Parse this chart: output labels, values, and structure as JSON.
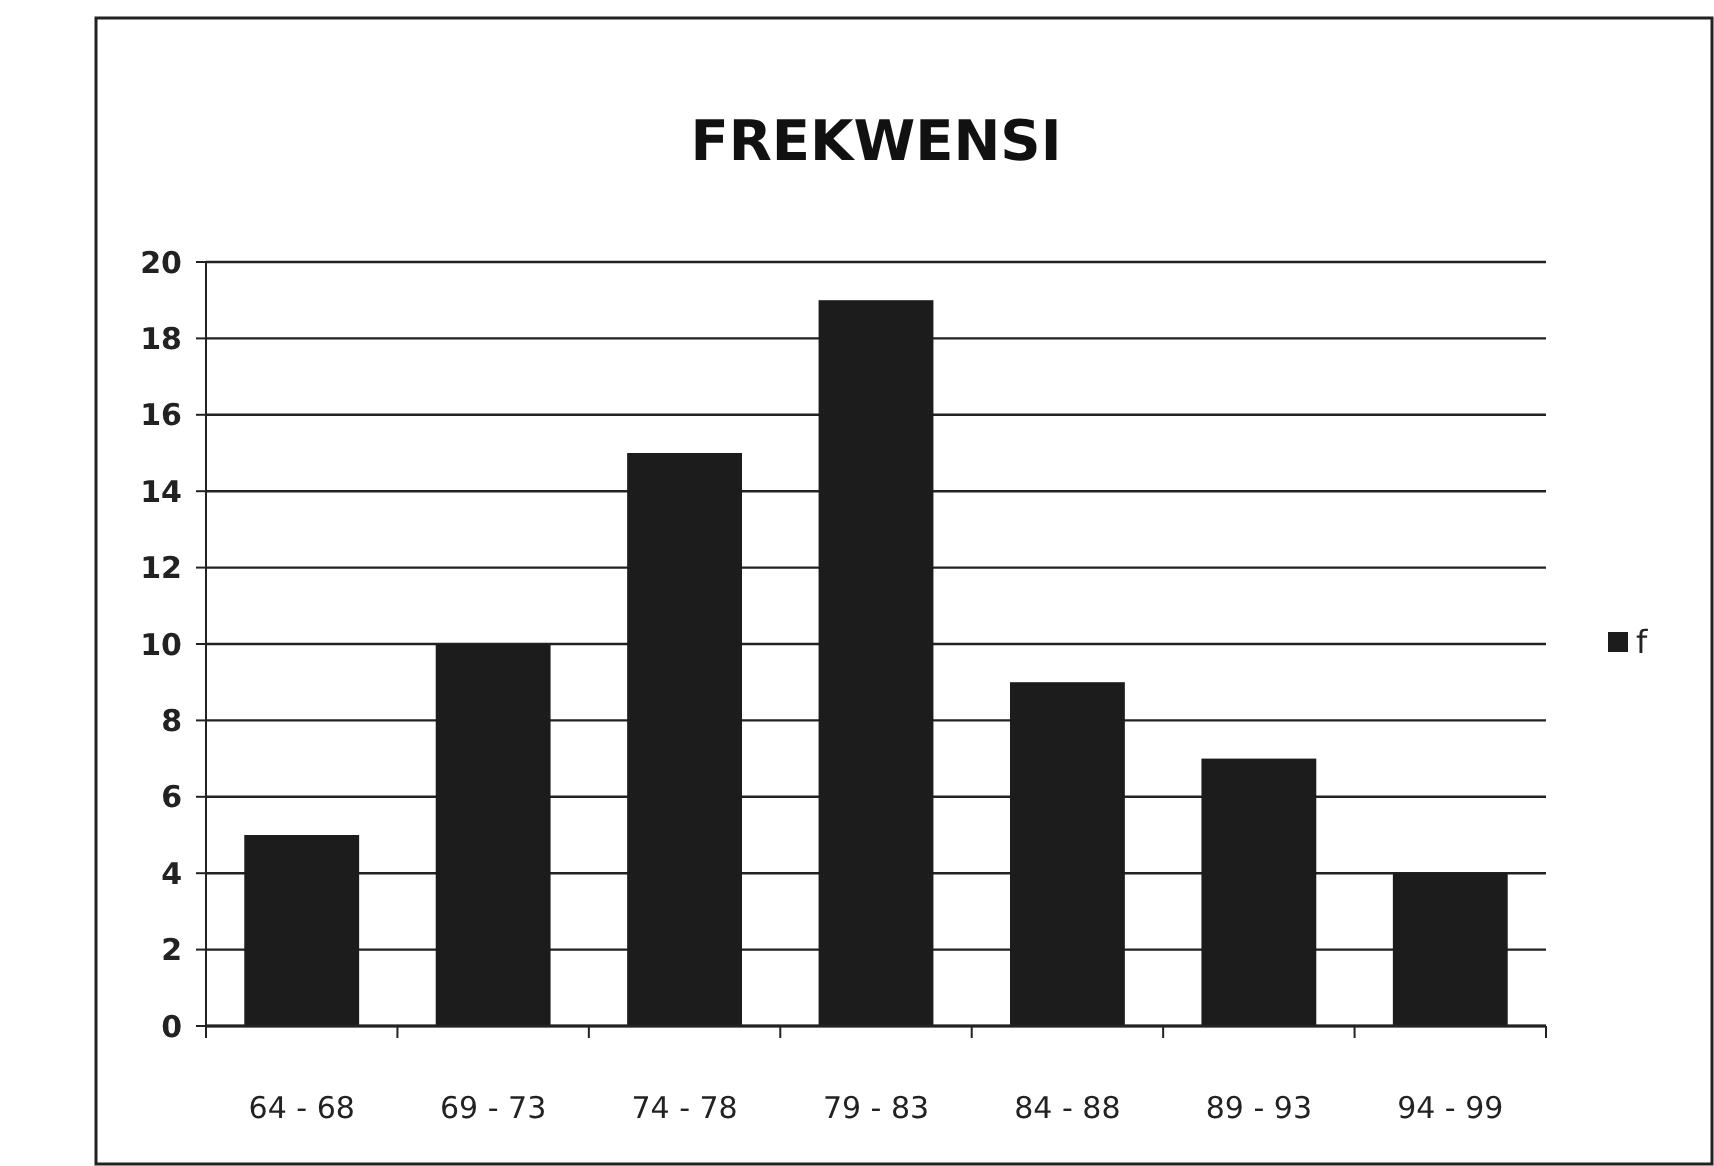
{
  "chart_data": {
    "type": "bar",
    "title": "FREKWENSI",
    "categories": [
      "64 - 68",
      "69 - 73",
      "74 - 78",
      "79 - 83",
      "84 - 88",
      "89 - 93",
      "94 - 99"
    ],
    "series": [
      {
        "name": "f",
        "color": "#1c1c1c",
        "values": [
          5,
          10,
          15,
          19,
          9,
          7,
          4
        ]
      }
    ],
    "ylim": [
      0,
      20
    ],
    "yticks": [
      0,
      2,
      4,
      6,
      8,
      10,
      12,
      14,
      16,
      18,
      20
    ],
    "grid": "y",
    "legend": "right"
  }
}
